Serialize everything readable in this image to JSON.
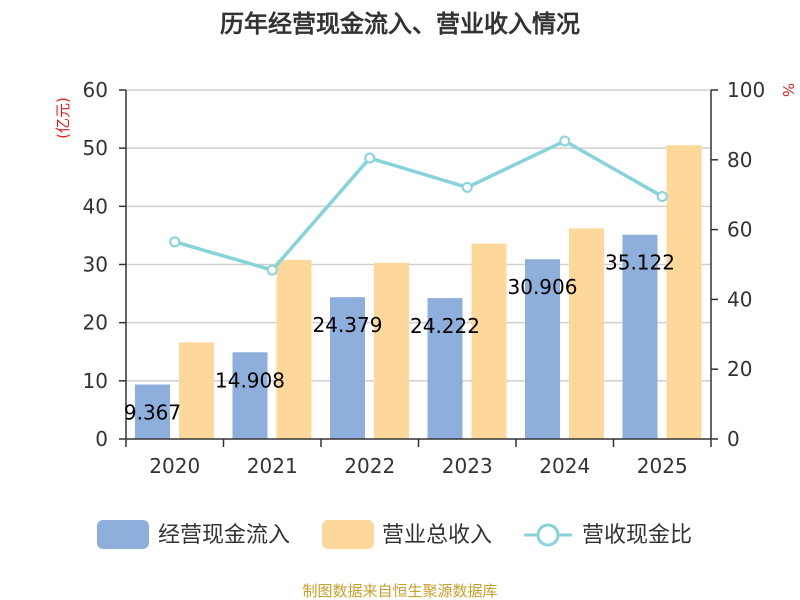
{
  "chart_data": {
    "type": "bar",
    "title": "历年经营现金流入、营业收入情况",
    "categories": [
      "2020",
      "2021",
      "2022",
      "2023",
      "2024",
      "2025"
    ],
    "left_axis": {
      "unit_label": "(亿元)",
      "range": [
        0,
        60
      ],
      "ticks": [
        0,
        10,
        20,
        30,
        40,
        50,
        60
      ]
    },
    "right_axis": {
      "unit_label": "%",
      "range": [
        0,
        100
      ],
      "ticks": [
        0,
        20,
        40,
        60,
        80,
        100
      ]
    },
    "grid": true,
    "legend_position": "bottom",
    "series": [
      {
        "name": "经营现金流入",
        "type": "bar",
        "axis": "left",
        "color": "#8eaedb",
        "values": [
          9.367,
          14.908,
          24.379,
          24.222,
          30.906,
          35.122
        ],
        "data_labels": [
          "9.367",
          "14.908",
          "24.379",
          "24.222",
          "30.906",
          "35.122"
        ]
      },
      {
        "name": "营业总收入",
        "type": "bar",
        "axis": "left",
        "color": "#fdd89a",
        "values": [
          16.6,
          30.8,
          30.3,
          33.6,
          36.2,
          50.5
        ]
      },
      {
        "name": "营收现金比",
        "type": "line",
        "axis": "right",
        "color": "#86d3db",
        "values": [
          56.5,
          48.4,
          80.5,
          72.1,
          85.4,
          69.5
        ]
      }
    ],
    "source": "制图数据来自恒生聚源数据库"
  }
}
